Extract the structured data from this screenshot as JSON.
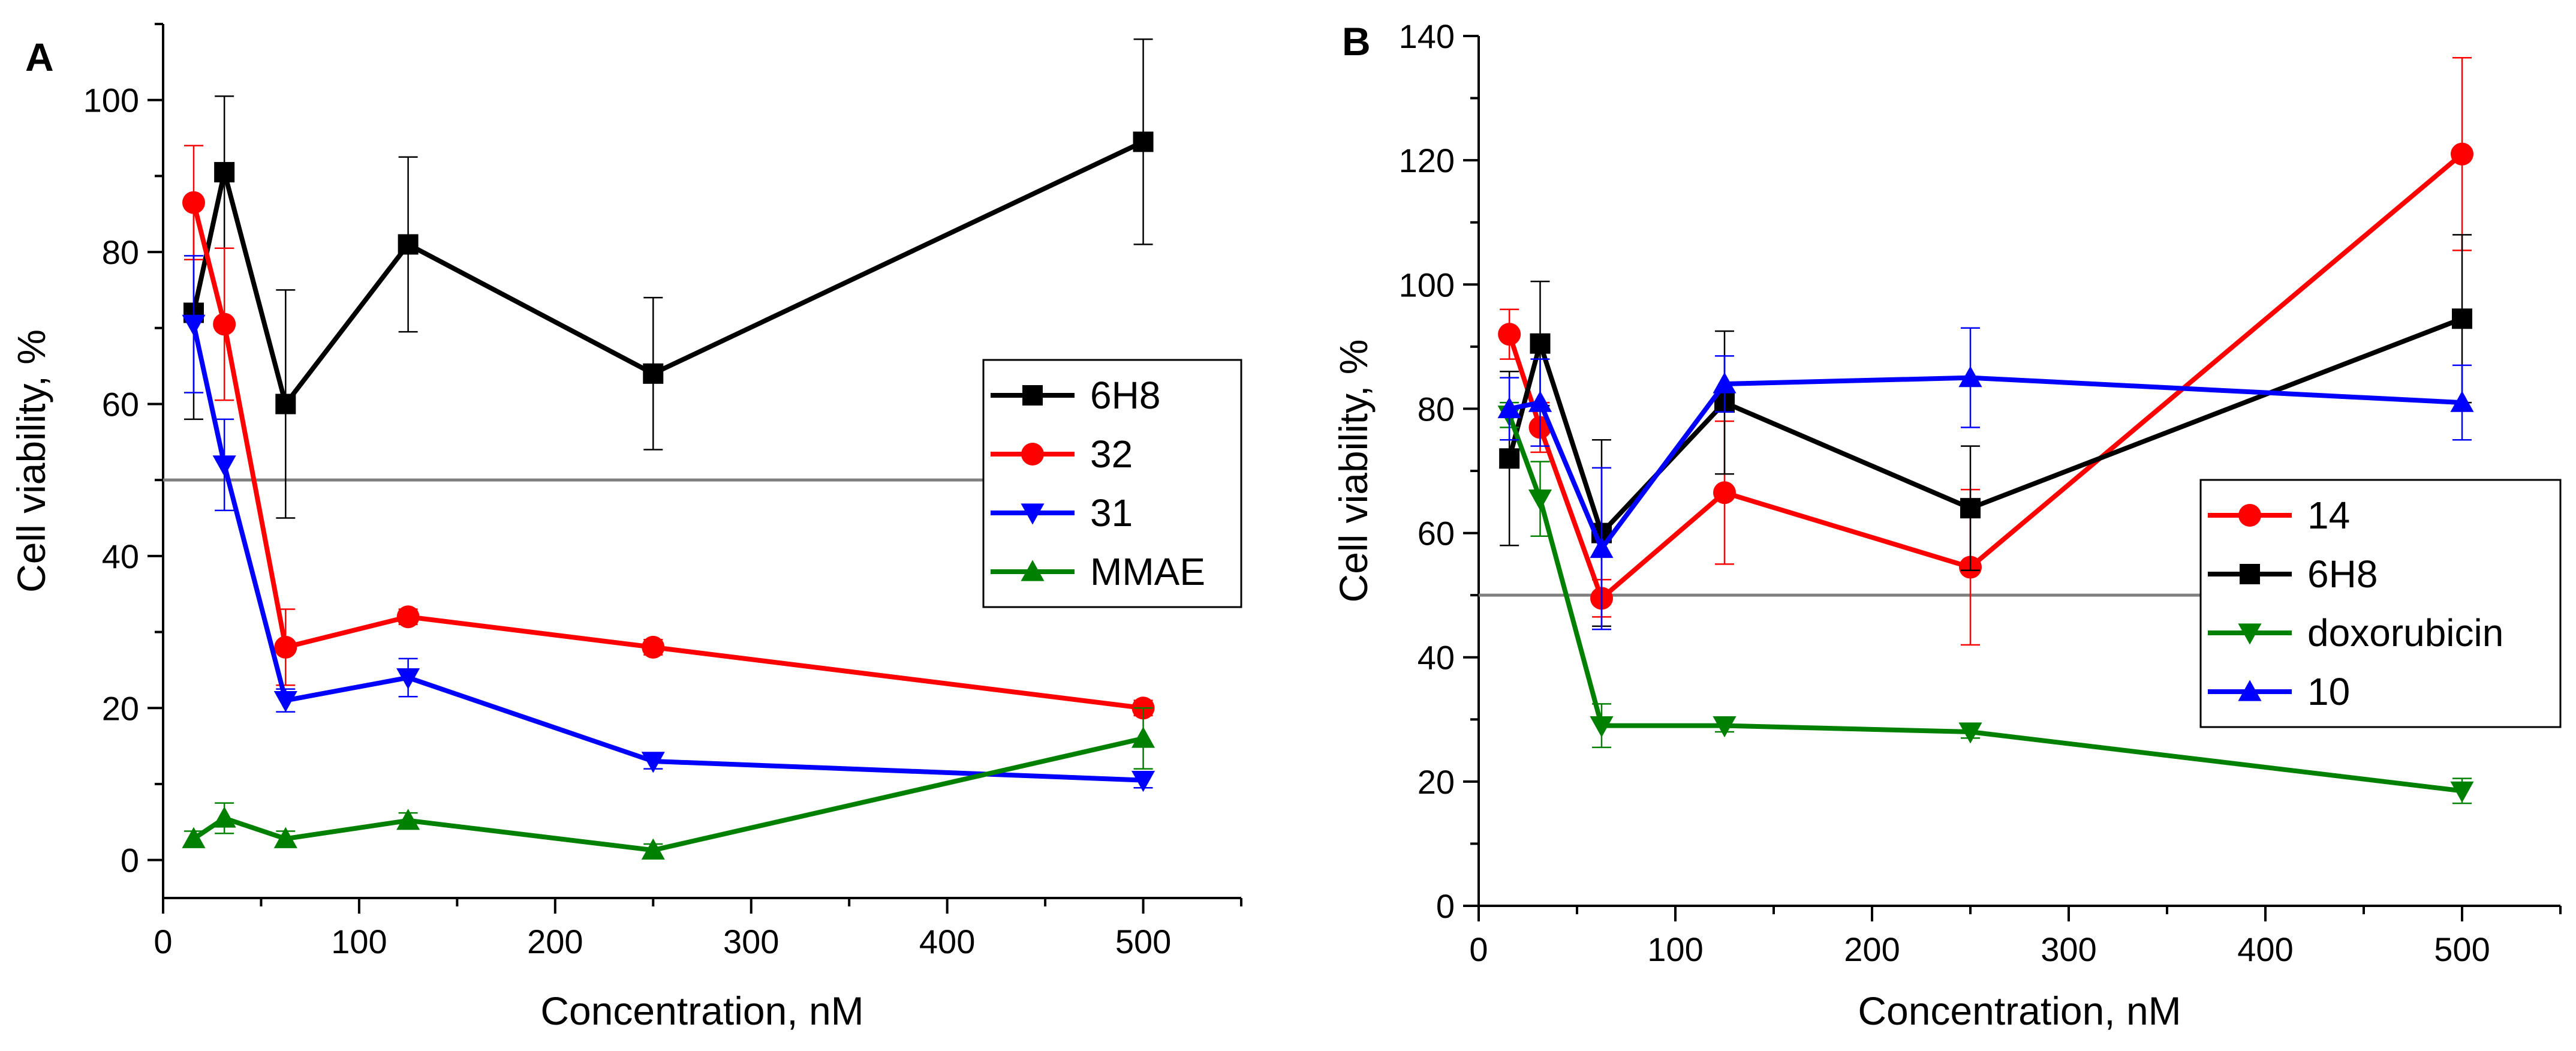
{
  "figure": {
    "panels": [
      "A",
      "B"
    ]
  },
  "chart_data": [
    {
      "panel_label": "A",
      "type": "line",
      "title": "",
      "xlabel": "Concentration, nM",
      "ylabel": "Cell viability, %",
      "xlim": [
        0,
        550
      ],
      "ylim": [
        -5,
        110
      ],
      "xticks": [
        0,
        100,
        200,
        300,
        400,
        500
      ],
      "yticks": [
        0,
        20,
        40,
        60,
        80,
        100
      ],
      "reference_line": 50,
      "legend_position": "center-right",
      "series": [
        {
          "name": "6H8",
          "color": "#000000",
          "marker": "square",
          "x": [
            15.6,
            31.25,
            62.5,
            125,
            250,
            500
          ],
          "y": [
            72,
            90.5,
            60,
            81,
            64,
            94.5
          ],
          "err": [
            14,
            10,
            15,
            11.5,
            10,
            13.5
          ]
        },
        {
          "name": "32",
          "color": "#ff0000",
          "marker": "circle",
          "x": [
            15.6,
            31.25,
            62.5,
            125,
            250,
            500
          ],
          "y": [
            86.5,
            70.5,
            28,
            32,
            28,
            20
          ],
          "err": [
            7.5,
            10,
            5,
            1,
            1,
            1
          ]
        },
        {
          "name": "31",
          "color": "#0000ff",
          "marker": "triangle-down",
          "x": [
            15.6,
            31.25,
            62.5,
            125,
            250,
            500
          ],
          "y": [
            70.5,
            52,
            21,
            24,
            13,
            10.5
          ],
          "err": [
            9,
            6,
            1.5,
            2.5,
            1,
            1
          ]
        },
        {
          "name": "MMAE",
          "color": "#008000",
          "marker": "triangle-up",
          "x": [
            15.6,
            31.25,
            62.5,
            125,
            250,
            500
          ],
          "y": [
            2.8,
            5.5,
            2.8,
            5.2,
            1.3,
            16
          ],
          "err": [
            1,
            2,
            1,
            1,
            0.8,
            4
          ]
        }
      ]
    },
    {
      "panel_label": "B",
      "type": "line",
      "title": "",
      "xlabel": "Concentration, nM",
      "ylabel": "Cell viability, %",
      "xlim": [
        0,
        550
      ],
      "ylim": [
        0,
        140
      ],
      "xticks": [
        0,
        100,
        200,
        300,
        400,
        500
      ],
      "yticks": [
        0,
        20,
        40,
        60,
        80,
        100,
        120,
        140
      ],
      "reference_line": 50,
      "legend_position": "lower-right",
      "series": [
        {
          "name": "14",
          "color": "#ff0000",
          "marker": "circle",
          "x": [
            15.6,
            31.25,
            62.5,
            125,
            250,
            500
          ],
          "y": [
            92,
            77,
            49.5,
            66.5,
            54.5,
            121
          ],
          "err": [
            4,
            4,
            3,
            11.5,
            12.5,
            15.5
          ]
        },
        {
          "name": "6H8",
          "color": "#000000",
          "marker": "square",
          "x": [
            15.6,
            31.25,
            62.5,
            125,
            250,
            500
          ],
          "y": [
            72,
            90.5,
            60,
            81,
            64,
            94.5
          ],
          "err": [
            14,
            10,
            15,
            11.5,
            10,
            13.5
          ]
        },
        {
          "name": "doxorubicin",
          "color": "#008000",
          "marker": "triangle-down",
          "x": [
            15.6,
            31.25,
            62.5,
            125,
            250,
            500
          ],
          "y": [
            79,
            65.5,
            29,
            29,
            28,
            18.5
          ],
          "err": [
            2,
            6,
            3.5,
            1,
            1,
            2
          ]
        },
        {
          "name": "10",
          "color": "#0000ff",
          "marker": "triangle-up",
          "x": [
            15.6,
            31.25,
            62.5,
            125,
            250,
            500
          ],
          "y": [
            80,
            81,
            57.5,
            84,
            85,
            81
          ],
          "err": [
            5,
            7,
            13,
            4.5,
            8,
            6
          ]
        }
      ]
    }
  ]
}
